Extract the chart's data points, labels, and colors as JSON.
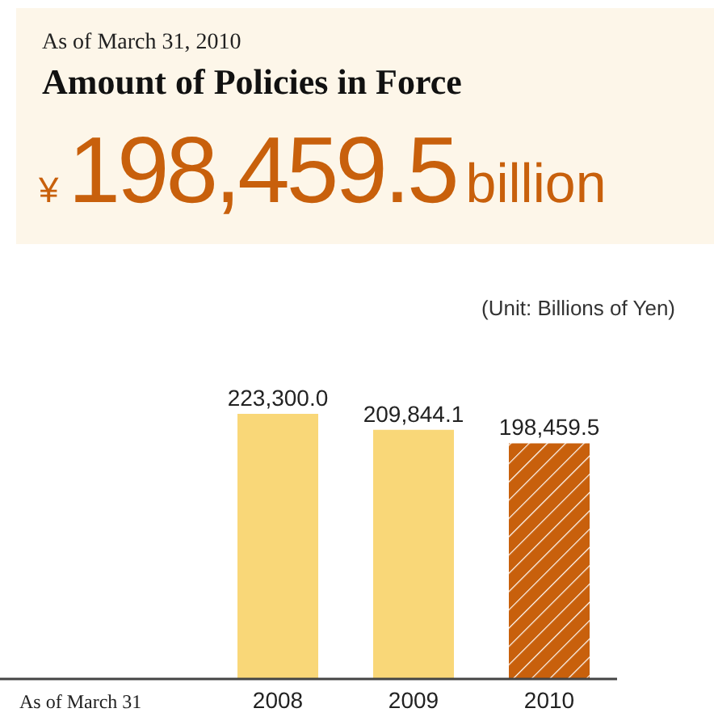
{
  "chart_data": {
    "type": "bar",
    "title": "Amount of Policies in Force",
    "subtitle": "As of March 31, 2010",
    "xlabel": "As of March 31",
    "annotations": [
      "¥",
      "198,459.5",
      "billion",
      "(Unit: Billions of Yen)"
    ],
    "categories": [
      "2008",
      "2009",
      "2010"
    ],
    "values": [
      223300.0,
      209844.1,
      198459.5
    ],
    "colors": [
      "#f9d778",
      "#f9d778",
      "#c8600c"
    ],
    "value_labels": [
      "223,300.0",
      "209,844.1",
      "198,459.5"
    ],
    "grid": false,
    "legend": false
  }
}
